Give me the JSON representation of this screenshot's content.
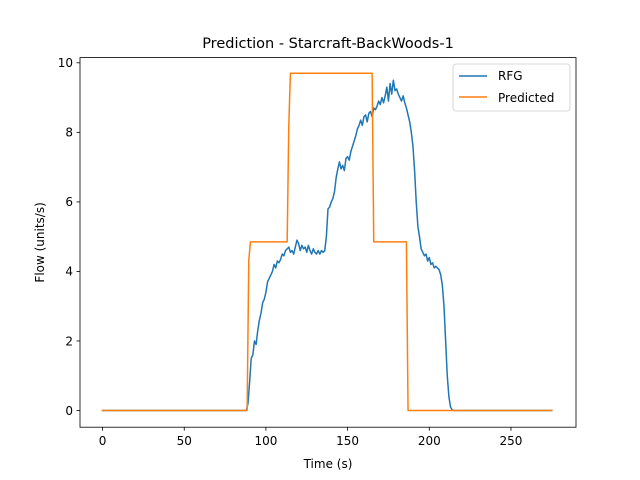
{
  "chart_data": {
    "type": "line",
    "title": "Prediction - Starcraft-BackWoods-1",
    "xlabel": "Time (s)",
    "ylabel": "Flow (units/s)",
    "xlim": [
      -13.8,
      289.8
    ],
    "ylim": [
      -0.48,
      10.15
    ],
    "xticks": [
      0,
      50,
      100,
      150,
      200,
      250
    ],
    "yticks": [
      0,
      2,
      4,
      6,
      8,
      10
    ],
    "grid": false,
    "legend_position": "top-right",
    "series": [
      {
        "name": "RFG",
        "color": "#1f77b4",
        "points": [
          [
            0,
            0
          ],
          [
            88,
            0
          ],
          [
            89,
            0.2
          ],
          [
            90,
            0.8
          ],
          [
            91,
            1.5
          ],
          [
            92,
            1.6
          ],
          [
            93,
            2.0
          ],
          [
            94,
            1.9
          ],
          [
            95,
            2.3
          ],
          [
            96,
            2.6
          ],
          [
            97,
            2.8
          ],
          [
            98,
            3.1
          ],
          [
            99,
            3.2
          ],
          [
            100,
            3.4
          ],
          [
            101,
            3.7
          ],
          [
            102,
            3.8
          ],
          [
            103,
            3.9
          ],
          [
            104,
            4.0
          ],
          [
            105,
            4.2
          ],
          [
            106,
            4.1
          ],
          [
            107,
            4.3
          ],
          [
            108,
            4.25
          ],
          [
            109,
            4.35
          ],
          [
            110,
            4.5
          ],
          [
            111,
            4.45
          ],
          [
            112,
            4.6
          ],
          [
            113,
            4.65
          ],
          [
            114,
            4.7
          ],
          [
            115,
            4.55
          ],
          [
            116,
            4.6
          ],
          [
            117,
            4.5
          ],
          [
            118,
            4.7
          ],
          [
            119,
            4.9
          ],
          [
            120,
            4.8
          ],
          [
            121,
            4.6
          ],
          [
            122,
            4.75
          ],
          [
            123,
            4.65
          ],
          [
            124,
            4.7
          ],
          [
            125,
            4.55
          ],
          [
            126,
            4.75
          ],
          [
            127,
            4.6
          ],
          [
            128,
            4.5
          ],
          [
            129,
            4.65
          ],
          [
            130,
            4.55
          ],
          [
            131,
            4.5
          ],
          [
            132,
            4.6
          ],
          [
            133,
            4.5
          ],
          [
            134,
            4.6
          ],
          [
            135,
            4.55
          ],
          [
            136,
            4.6
          ],
          [
            137,
            5.0
          ],
          [
            138,
            5.8
          ],
          [
            139,
            5.85
          ],
          [
            140,
            6.0
          ],
          [
            141,
            6.1
          ],
          [
            142,
            6.3
          ],
          [
            143,
            6.7
          ],
          [
            144,
            6.95
          ],
          [
            145,
            7.15
          ],
          [
            146,
            6.95
          ],
          [
            147,
            7.05
          ],
          [
            148,
            6.9
          ],
          [
            149,
            7.25
          ],
          [
            150,
            7.3
          ],
          [
            151,
            7.2
          ],
          [
            152,
            7.45
          ],
          [
            153,
            7.6
          ],
          [
            154,
            7.75
          ],
          [
            155,
            7.9
          ],
          [
            156,
            8.1
          ],
          [
            157,
            8.2
          ],
          [
            158,
            8.35
          ],
          [
            159,
            8.2
          ],
          [
            160,
            8.45
          ],
          [
            161,
            8.5
          ],
          [
            162,
            8.3
          ],
          [
            163,
            8.55
          ],
          [
            164,
            8.6
          ],
          [
            165,
            8.45
          ],
          [
            166,
            8.7
          ],
          [
            167,
            8.65
          ],
          [
            168,
            8.75
          ],
          [
            169,
            8.9
          ],
          [
            170,
            8.8
          ],
          [
            171,
            9.0
          ],
          [
            172,
            8.85
          ],
          [
            173,
            9.05
          ],
          [
            174,
            9.3
          ],
          [
            175,
            8.9
          ],
          [
            176,
            9.4
          ],
          [
            177,
            9.1
          ],
          [
            178,
            9.5
          ],
          [
            179,
            9.2
          ],
          [
            180,
            9.25
          ],
          [
            181,
            9.1
          ],
          [
            182,
            9.0
          ],
          [
            183,
            8.9
          ],
          [
            184,
            9.05
          ],
          [
            185,
            8.85
          ],
          [
            186,
            8.7
          ],
          [
            187,
            8.5
          ],
          [
            188,
            8.3
          ],
          [
            189,
            8.0
          ],
          [
            190,
            7.6
          ],
          [
            191,
            6.9
          ],
          [
            192,
            6.0
          ],
          [
            193,
            5.3
          ],
          [
            194,
            5.0
          ],
          [
            195,
            4.65
          ],
          [
            196,
            4.55
          ],
          [
            197,
            4.45
          ],
          [
            198,
            4.5
          ],
          [
            199,
            4.3
          ],
          [
            200,
            4.4
          ],
          [
            201,
            4.2
          ],
          [
            202,
            4.25
          ],
          [
            203,
            4.1
          ],
          [
            204,
            4.15
          ],
          [
            205,
            4.1
          ],
          [
            206,
            4.05
          ],
          [
            207,
            3.9
          ],
          [
            208,
            3.6
          ],
          [
            209,
            3.0
          ],
          [
            210,
            2.0
          ],
          [
            211,
            1.0
          ],
          [
            212,
            0.4
          ],
          [
            213,
            0.1
          ],
          [
            214,
            0.02
          ],
          [
            215,
            0
          ],
          [
            275,
            0
          ]
        ]
      },
      {
        "name": "Predicted",
        "color": "#ff7f0e",
        "points": [
          [
            0,
            0
          ],
          [
            88.5,
            0
          ],
          [
            89.5,
            4.3
          ],
          [
            90.5,
            4.85
          ],
          [
            113,
            4.85
          ],
          [
            114,
            8.2
          ],
          [
            115,
            9.7
          ],
          [
            165,
            9.7
          ],
          [
            166,
            4.85
          ],
          [
            186,
            4.85
          ],
          [
            187,
            0
          ],
          [
            275,
            0
          ]
        ]
      }
    ]
  }
}
